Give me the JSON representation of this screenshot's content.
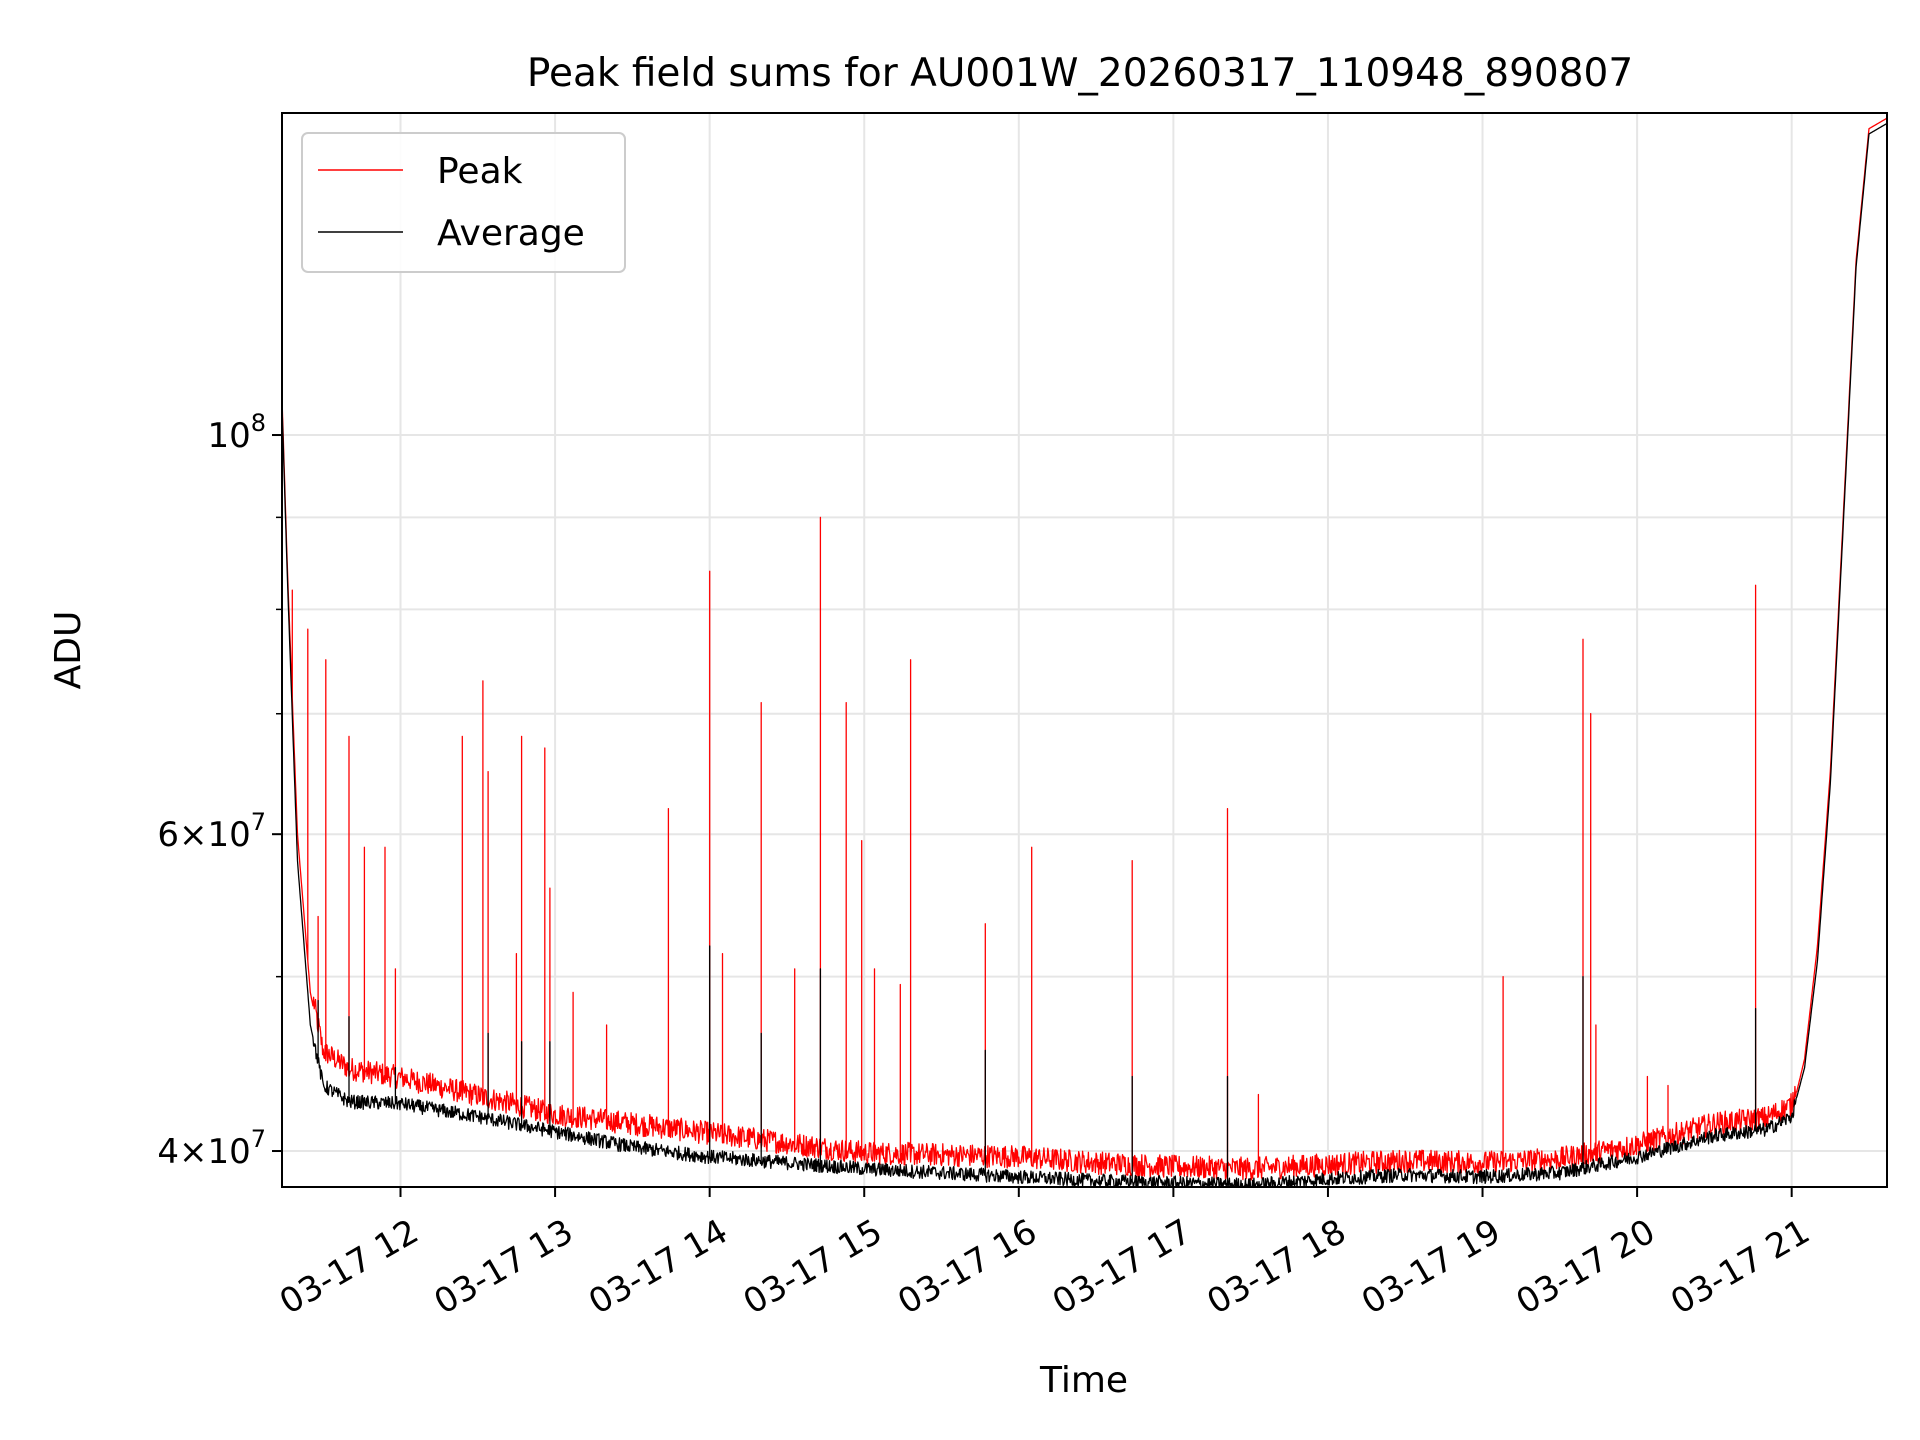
{
  "chart_data": {
    "type": "line",
    "title": "Peak field sums for AU001W_20260317_110948_890807",
    "xlabel": "Time",
    "ylabel": "ADU",
    "yscale": "log",
    "xlim": [
      "2026-03-17 11:14",
      "2026-03-17 21:37"
    ],
    "ylim": [
      38200000,
      151000000
    ],
    "grid": true,
    "legend_position": "upper-left",
    "x_tick_labels": [
      "03-17 12",
      "03-17 13",
      "03-17 14",
      "03-17 15",
      "03-17 16",
      "03-17 17",
      "03-17 18",
      "03-17 19",
      "03-17 20",
      "03-17 21"
    ],
    "x_ticks": [
      "2026-03-17 12:00",
      "2026-03-17 13:00",
      "2026-03-17 14:00",
      "2026-03-17 15:00",
      "2026-03-17 16:00",
      "2026-03-17 17:00",
      "2026-03-17 18:00",
      "2026-03-17 19:00",
      "2026-03-17 20:00",
      "2026-03-17 21:00"
    ],
    "y_tick_labels": [
      {
        "value": 40000000,
        "base": "4×10",
        "exp": "7"
      },
      {
        "value": 60000000,
        "base": "6×10",
        "exp": "7"
      },
      {
        "value": 100000000,
        "base": "10",
        "exp": "8"
      }
    ],
    "y_minor_ticks": [
      50000000,
      70000000,
      80000000,
      90000000
    ],
    "series": [
      {
        "name": "Peak",
        "color": "#ff0000",
        "baseline": {
          "x": [
            "2026-03-17 11:14",
            "2026-03-17 11:16",
            "2026-03-17 11:20",
            "2026-03-17 11:25",
            "2026-03-17 11:30",
            "2026-03-17 11:40",
            "2026-03-17 12:00",
            "2026-03-17 12:30",
            "2026-03-17 13:00",
            "2026-03-17 13:30",
            "2026-03-17 14:00",
            "2026-03-17 14:30",
            "2026-03-17 15:00",
            "2026-03-17 15:30",
            "2026-03-17 16:00",
            "2026-03-17 16:30",
            "2026-03-17 17:00",
            "2026-03-17 17:30",
            "2026-03-17 18:00",
            "2026-03-17 18:30",
            "2026-03-17 19:00",
            "2026-03-17 19:30",
            "2026-03-17 20:00",
            "2026-03-17 20:30",
            "2026-03-17 20:50",
            "2026-03-17 21:00",
            "2026-03-17 21:05",
            "2026-03-17 21:10",
            "2026-03-17 21:15",
            "2026-03-17 21:20",
            "2026-03-17 21:25",
            "2026-03-17 21:30",
            "2026-03-17 21:37"
          ],
          "y": [
            105000000,
            85000000,
            60000000,
            49000000,
            45000000,
            44000000,
            43500000,
            42500000,
            41500000,
            41000000,
            40500000,
            40000000,
            39500000,
            39400000,
            39300000,
            39000000,
            38800000,
            38700000,
            38900000,
            39100000,
            39000000,
            39200000,
            39900000,
            41000000,
            41300000,
            42000000,
            45000000,
            52000000,
            65000000,
            90000000,
            125000000,
            148000000,
            150000000
          ]
        },
        "spikes": {
          "x": [
            "2026-03-17 11:18",
            "2026-03-17 11:24",
            "2026-03-17 11:28",
            "2026-03-17 11:31",
            "2026-03-17 11:40",
            "2026-03-17 11:46",
            "2026-03-17 11:54",
            "2026-03-17 11:58",
            "2026-03-17 12:24",
            "2026-03-17 12:32",
            "2026-03-17 12:34",
            "2026-03-17 12:45",
            "2026-03-17 12:47",
            "2026-03-17 12:56",
            "2026-03-17 12:58",
            "2026-03-17 13:07",
            "2026-03-17 13:20",
            "2026-03-17 13:44",
            "2026-03-17 14:00",
            "2026-03-17 14:05",
            "2026-03-17 14:20",
            "2026-03-17 14:33",
            "2026-03-17 14:43",
            "2026-03-17 14:53",
            "2026-03-17 14:59",
            "2026-03-17 15:04",
            "2026-03-17 15:14",
            "2026-03-17 15:18",
            "2026-03-17 15:47",
            "2026-03-17 16:05",
            "2026-03-17 16:44",
            "2026-03-17 17:21",
            "2026-03-17 17:33",
            "2026-03-17 19:08",
            "2026-03-17 19:39",
            "2026-03-17 19:42",
            "2026-03-17 19:44",
            "2026-03-17 20:04",
            "2026-03-17 20:12",
            "2026-03-17 20:46"
          ],
          "y": [
            82000000,
            78000000,
            54000000,
            75000000,
            68000000,
            59000000,
            59000000,
            50500000,
            68000000,
            73000000,
            65000000,
            51500000,
            68000000,
            67000000,
            56000000,
            49000000,
            47000000,
            62000000,
            84000000,
            51500000,
            71000000,
            50500000,
            90000000,
            71000000,
            59500000,
            50500000,
            49500000,
            75000000,
            53500000,
            59000000,
            58000000,
            62000000,
            43000000,
            50000000,
            77000000,
            70000000,
            47000000,
            44000000,
            43500000,
            82500000
          ]
        }
      },
      {
        "name": "Average",
        "color": "#000000",
        "baseline": {
          "x": [
            "2026-03-17 11:14",
            "2026-03-17 11:16",
            "2026-03-17 11:20",
            "2026-03-17 11:25",
            "2026-03-17 11:30",
            "2026-03-17 11:40",
            "2026-03-17 12:00",
            "2026-03-17 12:30",
            "2026-03-17 13:00",
            "2026-03-17 13:30",
            "2026-03-17 14:00",
            "2026-03-17 14:30",
            "2026-03-17 15:00",
            "2026-03-17 15:30",
            "2026-03-17 16:00",
            "2026-03-17 16:30",
            "2026-03-17 17:00",
            "2026-03-17 17:30",
            "2026-03-17 18:00",
            "2026-03-17 18:30",
            "2026-03-17 19:00",
            "2026-03-17 19:30",
            "2026-03-17 20:00",
            "2026-03-17 20:30",
            "2026-03-17 20:50",
            "2026-03-17 21:00",
            "2026-03-17 21:05",
            "2026-03-17 21:10",
            "2026-03-17 21:15",
            "2026-03-17 21:20",
            "2026-03-17 21:25",
            "2026-03-17 21:30",
            "2026-03-17 21:37"
          ],
          "y": [
            104000000,
            84000000,
            58000000,
            47000000,
            43500000,
            42600000,
            42500000,
            41800000,
            41000000,
            40200000,
            39700000,
            39400000,
            39100000,
            38900000,
            38700000,
            38500000,
            38400000,
            38300000,
            38600000,
            38800000,
            38700000,
            38900000,
            39700000,
            40800000,
            41100000,
            41800000,
            44500000,
            51000000,
            64000000,
            89000000,
            124000000,
            147000000,
            149000000
          ]
        },
        "spikes": {
          "x": [
            "2026-03-17 11:28",
            "2026-03-17 11:40",
            "2026-03-17 11:58",
            "2026-03-17 12:34",
            "2026-03-17 12:47",
            "2026-03-17 12:58",
            "2026-03-17 14:00",
            "2026-03-17 14:20",
            "2026-03-17 14:43",
            "2026-03-17 15:47",
            "2026-03-17 16:44",
            "2026-03-17 17:21",
            "2026-03-17 19:39",
            "2026-03-17 20:46"
          ],
          "y": [
            48500000,
            47500000,
            44500000,
            46500000,
            46000000,
            46000000,
            52000000,
            46500000,
            50500000,
            45500000,
            44000000,
            44000000,
            50000000,
            48000000
          ]
        }
      }
    ]
  }
}
